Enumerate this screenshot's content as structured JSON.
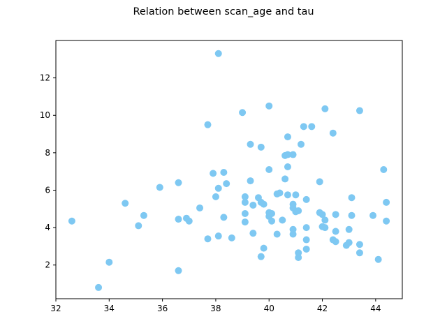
{
  "chart_data": {
    "type": "scatter",
    "title": "Relation between scan_age and tau",
    "xlabel": "",
    "ylabel": "",
    "xlim": [
      32,
      45
    ],
    "ylim": [
      0.2,
      14.0
    ],
    "xticks": [
      32,
      34,
      36,
      38,
      40,
      42,
      44
    ],
    "yticks": [
      2,
      4,
      6,
      8,
      10,
      12
    ],
    "point_color": "#7ec8f2",
    "grid": false,
    "points": [
      [
        32.6,
        4.35
      ],
      [
        33.6,
        0.8
      ],
      [
        34.0,
        2.15
      ],
      [
        34.6,
        5.3
      ],
      [
        35.1,
        4.1
      ],
      [
        35.3,
        4.65
      ],
      [
        35.9,
        6.15
      ],
      [
        36.6,
        6.4
      ],
      [
        36.6,
        4.45
      ],
      [
        36.6,
        1.7
      ],
      [
        36.9,
        4.5
      ],
      [
        37.0,
        4.35
      ],
      [
        37.4,
        5.05
      ],
      [
        37.7,
        9.5
      ],
      [
        37.7,
        3.4
      ],
      [
        37.9,
        6.9
      ],
      [
        38.0,
        5.65
      ],
      [
        38.1,
        6.1
      ],
      [
        38.1,
        3.55
      ],
      [
        38.1,
        13.3
      ],
      [
        38.3,
        6.95
      ],
      [
        38.3,
        4.55
      ],
      [
        38.4,
        6.35
      ],
      [
        38.6,
        3.45
      ],
      [
        39.0,
        10.15
      ],
      [
        39.1,
        5.65
      ],
      [
        39.1,
        5.35
      ],
      [
        39.1,
        4.75
      ],
      [
        39.1,
        4.3
      ],
      [
        39.3,
        8.45
      ],
      [
        39.3,
        6.5
      ],
      [
        39.4,
        5.2
      ],
      [
        39.4,
        3.7
      ],
      [
        39.6,
        5.6
      ],
      [
        39.7,
        5.35
      ],
      [
        39.7,
        8.3
      ],
      [
        39.7,
        2.45
      ],
      [
        39.8,
        5.25
      ],
      [
        39.8,
        2.9
      ],
      [
        40.0,
        10.5
      ],
      [
        40.0,
        7.1
      ],
      [
        40.0,
        4.8
      ],
      [
        40.0,
        4.6
      ],
      [
        40.1,
        4.75
      ],
      [
        40.1,
        4.35
      ],
      [
        40.3,
        5.8
      ],
      [
        40.3,
        3.65
      ],
      [
        40.4,
        5.85
      ],
      [
        40.5,
        4.4
      ],
      [
        40.6,
        7.85
      ],
      [
        40.6,
        6.6
      ],
      [
        40.7,
        8.85
      ],
      [
        40.7,
        7.9
      ],
      [
        40.7,
        7.25
      ],
      [
        40.7,
        5.75
      ],
      [
        40.9,
        7.9
      ],
      [
        40.9,
        5.25
      ],
      [
        40.9,
        5.05
      ],
      [
        40.9,
        3.9
      ],
      [
        40.9,
        3.65
      ],
      [
        41.0,
        5.75
      ],
      [
        41.0,
        4.85
      ],
      [
        41.1,
        4.9
      ],
      [
        41.1,
        2.65
      ],
      [
        41.1,
        2.4
      ],
      [
        41.2,
        8.45
      ],
      [
        41.3,
        9.4
      ],
      [
        41.4,
        5.5
      ],
      [
        41.4,
        4.0
      ],
      [
        41.4,
        3.35
      ],
      [
        41.4,
        2.85
      ],
      [
        41.6,
        9.4
      ],
      [
        41.9,
        6.45
      ],
      [
        41.9,
        4.8
      ],
      [
        42.0,
        4.7
      ],
      [
        42.0,
        4.05
      ],
      [
        42.1,
        10.35
      ],
      [
        42.1,
        4.4
      ],
      [
        42.1,
        4.0
      ],
      [
        42.4,
        9.05
      ],
      [
        42.4,
        3.35
      ],
      [
        42.5,
        4.7
      ],
      [
        42.5,
        3.8
      ],
      [
        42.5,
        3.25
      ],
      [
        42.9,
        3.05
      ],
      [
        43.0,
        3.9
      ],
      [
        43.0,
        3.2
      ],
      [
        43.1,
        5.6
      ],
      [
        43.1,
        4.65
      ],
      [
        43.4,
        10.25
      ],
      [
        43.4,
        3.1
      ],
      [
        43.4,
        2.65
      ],
      [
        43.9,
        4.65
      ],
      [
        44.1,
        2.3
      ],
      [
        44.3,
        7.1
      ],
      [
        44.4,
        5.35
      ],
      [
        44.4,
        4.35
      ]
    ]
  }
}
